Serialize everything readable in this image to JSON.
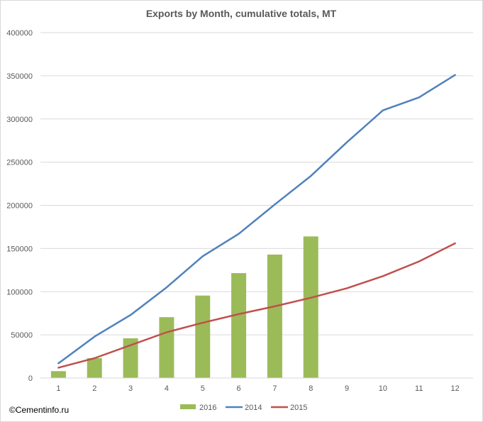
{
  "chart_data": {
    "type": "bar",
    "title": "Exports by Month, cumulative totals, MT",
    "xlabel": "",
    "ylabel": "",
    "categories": [
      "1",
      "2",
      "3",
      "4",
      "5",
      "6",
      "7",
      "8",
      "9",
      "10",
      "11",
      "12"
    ],
    "ylim": [
      0,
      400000
    ],
    "yticks": [
      0,
      50000,
      100000,
      150000,
      200000,
      250000,
      300000,
      350000,
      400000
    ],
    "grid": true,
    "legend_position": "bottom",
    "series": [
      {
        "name": "2016",
        "kind": "bar",
        "color": "#9bbb59",
        "values": [
          8000,
          23000,
          46000,
          70500,
          95500,
          121500,
          143000,
          164000,
          null,
          null,
          null,
          null
        ]
      },
      {
        "name": "2014",
        "kind": "line",
        "color": "#4f81bd",
        "values": [
          17000,
          48000,
          73000,
          105000,
          141000,
          167000,
          201000,
          234000,
          273000,
          310000,
          325000,
          351000
        ]
      },
      {
        "name": "2015",
        "kind": "line",
        "color": "#c0504d",
        "values": [
          12000,
          23000,
          38000,
          53000,
          64000,
          74000,
          83000,
          93000,
          104000,
          118000,
          135000,
          156000
        ]
      }
    ]
  },
  "credit": "©Cementinfo.ru"
}
